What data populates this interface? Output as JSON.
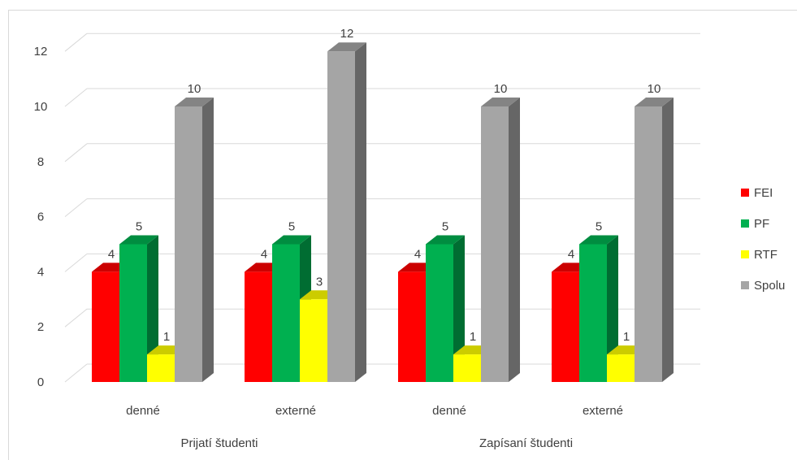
{
  "chart_data": {
    "type": "bar",
    "style": "3d-clustered-column",
    "groups": [
      {
        "label": "Prijatí študenti",
        "categories": [
          "denné",
          "externé"
        ]
      },
      {
        "label": "Zapísaní študenti",
        "categories": [
          "denné",
          "externé"
        ]
      }
    ],
    "categories": [
      "denné",
      "externé",
      "denné",
      "externé"
    ],
    "series": [
      {
        "name": "FEI",
        "color": "#ff0000",
        "values": [
          4,
          4,
          4,
          4
        ]
      },
      {
        "name": "PF",
        "color": "#00b050",
        "values": [
          5,
          5,
          5,
          5
        ]
      },
      {
        "name": "RTF",
        "color": "#ffff00",
        "values": [
          1,
          3,
          1,
          1
        ]
      },
      {
        "name": "Spolu",
        "color": "#a5a5a5",
        "values": [
          10,
          12,
          10,
          10
        ]
      }
    ],
    "ylim": [
      0,
      12
    ],
    "yticks": [
      "0",
      "2",
      "4",
      "6",
      "8",
      "10",
      "12"
    ],
    "grid": true,
    "legend_position": "right",
    "data_labels": true
  }
}
